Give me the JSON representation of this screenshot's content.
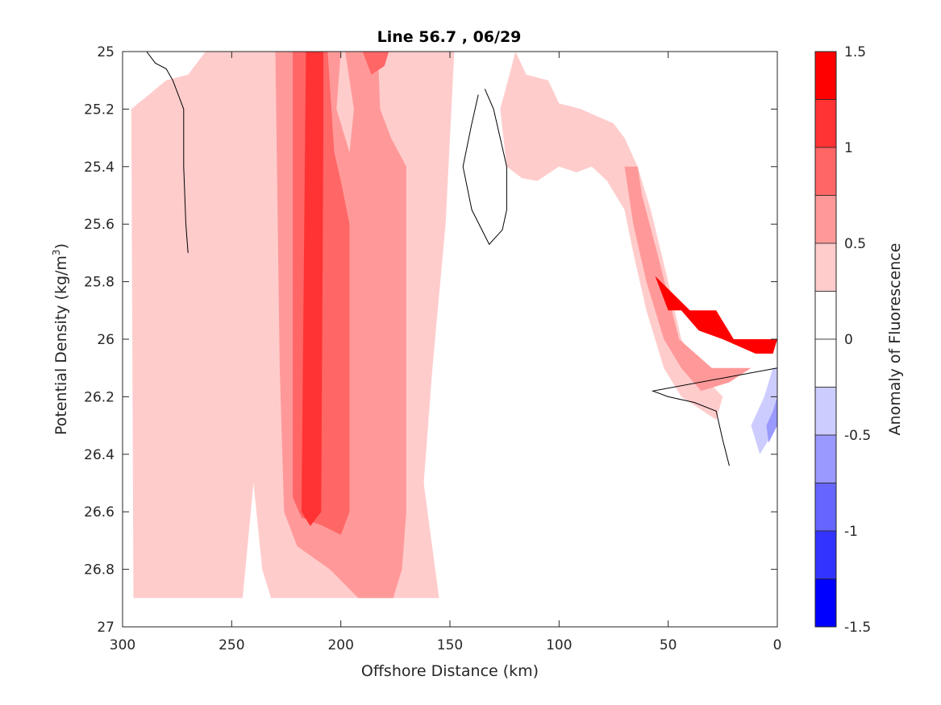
{
  "chart_data": {
    "type": "contour",
    "title": "Line 56.7 , 06/29",
    "xlabel": "Offshore Distance (km)",
    "ylabel_main": "Potential Density (kg/m",
    "ylabel_sup": "3",
    "ylabel_close": ")",
    "xlim": [
      300,
      0
    ],
    "ylim": [
      25,
      27
    ],
    "x_reversed": true,
    "y_reversed": true,
    "xticks": [
      300,
      250,
      200,
      150,
      100,
      50,
      0
    ],
    "xtick_labels": [
      "300",
      "250",
      "200",
      "150",
      "100",
      "50",
      "0"
    ],
    "yticks": [
      25,
      25.2,
      25.4,
      25.6,
      25.8,
      26,
      26.2,
      26.4,
      26.6,
      26.8,
      27
    ],
    "ytick_labels": [
      "25",
      "25.2",
      "25.4",
      "25.6",
      "25.8",
      "26",
      "26.2",
      "26.4",
      "26.6",
      "26.8",
      "27"
    ],
    "colorbar": {
      "label": "Anomaly of Fluorescence",
      "range": [
        -1.5,
        1.5
      ],
      "ticks": [
        1.5,
        1,
        0.5,
        0,
        -0.5,
        -1,
        -1.5
      ],
      "tick_labels": [
        "1.5",
        "1",
        "0.5",
        "0",
        "-0.5",
        "-1",
        "-1.5"
      ],
      "levels": [
        {
          "from": 1.25,
          "to": 1.5,
          "color": "#ff0000"
        },
        {
          "from": 1.0,
          "to": 1.25,
          "color": "#ff3333"
        },
        {
          "from": 0.75,
          "to": 1.0,
          "color": "#ff6666"
        },
        {
          "from": 0.5,
          "to": 0.75,
          "color": "#ff9999"
        },
        {
          "from": 0.25,
          "to": 0.5,
          "color": "#ffcccc"
        },
        {
          "from": 0.0,
          "to": 0.25,
          "color": "#ffffff"
        },
        {
          "from": -0.25,
          "to": 0.0,
          "color": "#ffffff"
        },
        {
          "from": -0.5,
          "to": -0.25,
          "color": "#ccccff"
        },
        {
          "from": -0.75,
          "to": -0.5,
          "color": "#9999ff"
        },
        {
          "from": -1.0,
          "to": -0.75,
          "color": "#6666ff"
        },
        {
          "from": -1.25,
          "to": -1.0,
          "color": "#3333ff"
        },
        {
          "from": -1.5,
          "to": -1.25,
          "color": "#0000ff"
        }
      ]
    },
    "regions": [
      {
        "level": 0.25,
        "color": "#ffcccc",
        "points": [
          [
            295,
            26.9
          ],
          [
            296,
            25.2
          ],
          [
            280,
            25.1
          ],
          [
            270,
            25.08
          ],
          [
            262,
            25
          ],
          [
            222,
            25
          ],
          [
            238,
            25.12
          ],
          [
            242,
            25.06
          ],
          [
            244,
            25
          ],
          [
            148,
            25
          ],
          [
            152,
            25.6
          ],
          [
            158,
            26.1
          ],
          [
            162,
            26.5
          ],
          [
            155,
            26.9
          ],
          [
            232,
            26.9
          ],
          [
            236,
            26.8
          ],
          [
            240,
            26.5
          ],
          [
            245,
            26.9
          ]
        ]
      },
      {
        "level": 0.25,
        "color": "#ffcccc",
        "points": [
          [
            120,
            25
          ],
          [
            115,
            25.08
          ],
          [
            105,
            25.1
          ],
          [
            100,
            25.18
          ],
          [
            90,
            25.2
          ],
          [
            75,
            25.25
          ],
          [
            70,
            25.3
          ],
          [
            64,
            25.4
          ],
          [
            58,
            25.55
          ],
          [
            50,
            25.8
          ],
          [
            44,
            26
          ],
          [
            35,
            26.12
          ],
          [
            25,
            26.2
          ],
          [
            28,
            26.28
          ],
          [
            36,
            26.24
          ],
          [
            44,
            26.2
          ],
          [
            52,
            26.1
          ],
          [
            60,
            25.9
          ],
          [
            66,
            25.7
          ],
          [
            70,
            25.55
          ],
          [
            78,
            25.45
          ],
          [
            85,
            25.4
          ],
          [
            92,
            25.42
          ],
          [
            100,
            25.4
          ],
          [
            110,
            25.45
          ],
          [
            117,
            25.44
          ],
          [
            124,
            25.4
          ],
          [
            127,
            25.2
          ],
          [
            122,
            25.06
          ]
        ]
      },
      {
        "level": 0.5,
        "color": "#ff9999",
        "points": [
          [
            230,
            25
          ],
          [
            228,
            26.1
          ],
          [
            226,
            26.6
          ],
          [
            220,
            26.72
          ],
          [
            205,
            26.8
          ],
          [
            192,
            26.9
          ],
          [
            176,
            26.9
          ],
          [
            172,
            26.8
          ],
          [
            170,
            26.6
          ],
          [
            170,
            25.4
          ],
          [
            177,
            25.3
          ],
          [
            182,
            25.2
          ],
          [
            183,
            25
          ],
          [
            198,
            25
          ],
          [
            194,
            25.2
          ],
          [
            196,
            25.35
          ],
          [
            202,
            25.2
          ],
          [
            200,
            25
          ]
        ]
      },
      {
        "level": 0.5,
        "color": "#ff9999",
        "points": [
          [
            70,
            25.4
          ],
          [
            66,
            25.6
          ],
          [
            60,
            25.8
          ],
          [
            52,
            26
          ],
          [
            44,
            26.1
          ],
          [
            35,
            26.18
          ],
          [
            22,
            26.15
          ],
          [
            12,
            26.1
          ],
          [
            30,
            26.1
          ],
          [
            45,
            26.0
          ],
          [
            55,
            25.7
          ],
          [
            62,
            25.5
          ],
          [
            64,
            25.4
          ]
        ]
      },
      {
        "level": 0.75,
        "color": "#ff6666",
        "points": [
          [
            222,
            25
          ],
          [
            222,
            26.55
          ],
          [
            218,
            26.62
          ],
          [
            208,
            26.65
          ],
          [
            200,
            26.68
          ],
          [
            196,
            26.6
          ],
          [
            196,
            25.6
          ],
          [
            200,
            25.45
          ],
          [
            203,
            25.35
          ],
          [
            206,
            25
          ],
          [
            190,
            25
          ],
          [
            186,
            25.08
          ],
          [
            180,
            25.05
          ],
          [
            178,
            25
          ]
        ]
      },
      {
        "level": 1.0,
        "color": "#ff3333",
        "points": [
          [
            216,
            25
          ],
          [
            218,
            26.6
          ],
          [
            214,
            26.65
          ],
          [
            209,
            26.6
          ],
          [
            208,
            25.3
          ],
          [
            208,
            25
          ]
        ]
      },
      {
        "level": 1.25,
        "color": "#ff0000",
        "points": [
          [
            56,
            25.78
          ],
          [
            50,
            25.9
          ],
          [
            44,
            25.9
          ],
          [
            36,
            25.97
          ],
          [
            25,
            26
          ],
          [
            10,
            26.05
          ],
          [
            2,
            26.05
          ],
          [
            0,
            26
          ],
          [
            20,
            26
          ],
          [
            28,
            25.9
          ],
          [
            40,
            25.9
          ]
        ]
      },
      {
        "level": -0.5,
        "color": "#ccccff",
        "points": [
          [
            12,
            26.3
          ],
          [
            6,
            26.2
          ],
          [
            2,
            26.1
          ],
          [
            0,
            26.1
          ],
          [
            0,
            26.3
          ],
          [
            8,
            26.4
          ]
        ]
      },
      {
        "level": -0.75,
        "color": "#9999ff",
        "points": [
          [
            5,
            26.3
          ],
          [
            2,
            26.25
          ],
          [
            0,
            26.2
          ],
          [
            0,
            26.3
          ],
          [
            4,
            26.36
          ]
        ]
      }
    ],
    "contour_lines": [
      {
        "level": 0,
        "points": [
          [
            289,
            25
          ],
          [
            285,
            25.04
          ],
          [
            280,
            25.06
          ],
          [
            277,
            25.1
          ],
          [
            272,
            25.2
          ],
          [
            272,
            25.4
          ],
          [
            271,
            25.6
          ],
          [
            270,
            25.7
          ]
        ]
      },
      {
        "level": 0,
        "points": [
          [
            134,
            25.13
          ],
          [
            130,
            25.2
          ],
          [
            127,
            25.3
          ],
          [
            124,
            25.4
          ],
          [
            124,
            25.55
          ],
          [
            126,
            25.62
          ],
          [
            132,
            25.67
          ],
          [
            140,
            25.55
          ],
          [
            144,
            25.4
          ],
          [
            140,
            25.25
          ],
          [
            137,
            25.15
          ]
        ]
      },
      {
        "level": 0,
        "points": [
          [
            22,
            26.44
          ],
          [
            25,
            26.35
          ],
          [
            28,
            26.25
          ],
          [
            38,
            26.22
          ],
          [
            50,
            26.2
          ],
          [
            57,
            26.18
          ],
          [
            0,
            26.1
          ]
        ]
      }
    ]
  }
}
